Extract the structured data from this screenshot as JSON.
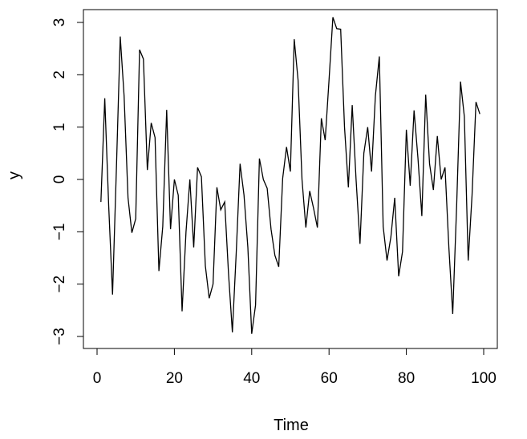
{
  "chart_data": {
    "type": "line",
    "title": "",
    "xlabel": "Time",
    "ylabel": "y",
    "xlim": [
      0,
      100
    ],
    "ylim": [
      -3,
      3
    ],
    "xticks": [
      0,
      20,
      40,
      60,
      80,
      100
    ],
    "yticks": [
      -3,
      -2,
      -1,
      0,
      1,
      2,
      3
    ],
    "grid": false,
    "color": "#000000",
    "x_start": 1,
    "values": [
      -0.43,
      1.55,
      -0.5,
      -2.2,
      0.2,
      2.73,
      1.6,
      -0.35,
      -1.02,
      -0.75,
      2.48,
      2.3,
      0.18,
      1.08,
      0.8,
      -1.75,
      -0.9,
      1.33,
      -0.95,
      0.0,
      -0.3,
      -2.52,
      -1.0,
      0.0,
      -1.3,
      0.23,
      0.05,
      -1.65,
      -2.27,
      -2.0,
      -0.15,
      -0.58,
      -0.43,
      -1.8,
      -2.92,
      -1.4,
      0.3,
      -0.3,
      -1.3,
      -2.95,
      -2.4,
      0.4,
      0.0,
      -0.17,
      -0.95,
      -1.45,
      -1.67,
      0.02,
      0.62,
      0.15,
      2.68,
      1.9,
      0.0,
      -0.92,
      -0.22,
      -0.55,
      -0.92,
      1.17,
      0.75,
      1.9,
      3.1,
      2.88,
      2.87,
      1.0,
      -0.15,
      1.42,
      0.0,
      -1.23,
      0.5,
      1.0,
      0.15,
      1.6,
      2.35,
      -0.9,
      -1.55,
      -1.1,
      -0.35,
      -1.85,
      -1.38,
      0.95,
      -0.12,
      1.32,
      0.4,
      -0.7,
      1.62,
      0.3,
      -0.2,
      0.83,
      0.0,
      0.23,
      -1.3,
      -2.57,
      -0.5,
      1.87,
      1.2,
      -1.55,
      -0.3,
      1.48,
      1.25
    ]
  }
}
